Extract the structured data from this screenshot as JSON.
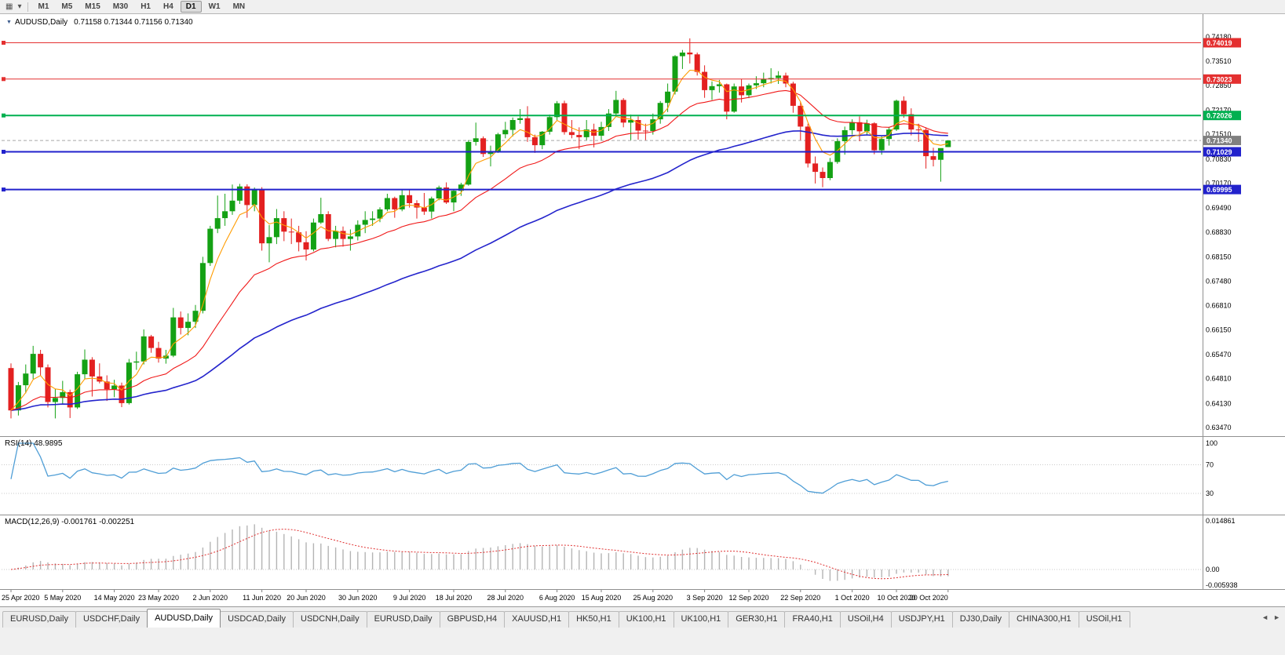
{
  "toolbar": {
    "timeframes": [
      "M1",
      "M5",
      "M15",
      "M30",
      "H1",
      "H4",
      "D1",
      "W1",
      "MN"
    ],
    "active_timeframe": "D1"
  },
  "chart": {
    "symbol_timeframe": "AUDUSD,Daily",
    "ohlc_readout": "0.71158 0.71344 0.71156 0.71340",
    "current_price": "0.71340",
    "current_price_value": 0.7134,
    "colors": {
      "bull": "#14a114",
      "bear": "#e32020",
      "ma_fast": "#ff9c00",
      "ma_mid": "#f01818",
      "ma_slow": "#2424cc",
      "rsi_line": "#4f9ed6",
      "macd_hist": "#b4b4b4",
      "macd_signal": "#e03030",
      "price_label_bg": "#808080"
    },
    "hlines": [
      {
        "price": 0.74019,
        "label": "0.74019",
        "color": "#e43030",
        "width": 1
      },
      {
        "price": 0.73023,
        "label": "0.73023",
        "color": "#e43030",
        "width": 1
      },
      {
        "price": 0.72026,
        "label": "0.72026",
        "color": "#00b050",
        "width": 2
      },
      {
        "price": 0.71029,
        "label": "0.71029",
        "color": "#2222cc",
        "width": 2
      },
      {
        "price": 0.69995,
        "label": "0.69995",
        "color": "#2222cc",
        "width": 2
      }
    ],
    "price_ticks": [
      0.7418,
      0.7351,
      0.7285,
      0.7217,
      0.7151,
      0.7083,
      0.7017,
      0.6949,
      0.6883,
      0.6815,
      0.6748,
      0.6681,
      0.6615,
      0.6547,
      0.6481,
      0.6413,
      0.6347
    ]
  },
  "chart_data": {
    "type": "candlestick",
    "title": "AUDUSD,Daily",
    "ylim": [
      0.6347,
      0.7418
    ],
    "indicators": {
      "ma_fast_period": 5,
      "ma_mid_period": 20,
      "ma_slow_period": 55,
      "rsi_period": 14,
      "macd_params": [
        12,
        26,
        9
      ]
    },
    "ohlc": [
      [
        0.651,
        0.6523,
        0.6372,
        0.6394
      ],
      [
        0.6394,
        0.6472,
        0.638,
        0.6463
      ],
      [
        0.6463,
        0.652,
        0.6441,
        0.6495
      ],
      [
        0.6495,
        0.6571,
        0.648,
        0.6549
      ],
      [
        0.6549,
        0.656,
        0.649,
        0.6512
      ],
      [
        0.6512,
        0.652,
        0.6402,
        0.6417
      ],
      [
        0.6417,
        0.6453,
        0.6372,
        0.6428
      ],
      [
        0.6428,
        0.6475,
        0.641,
        0.6444
      ],
      [
        0.6444,
        0.6451,
        0.6373,
        0.6402
      ],
      [
        0.6402,
        0.65,
        0.6398,
        0.6493
      ],
      [
        0.6493,
        0.6561,
        0.648,
        0.6533
      ],
      [
        0.6533,
        0.654,
        0.6432,
        0.6487
      ],
      [
        0.6487,
        0.6523,
        0.6468,
        0.6473
      ],
      [
        0.6473,
        0.649,
        0.642,
        0.6452
      ],
      [
        0.6452,
        0.6478,
        0.643,
        0.6462
      ],
      [
        0.6462,
        0.647,
        0.6403,
        0.6414
      ],
      [
        0.6414,
        0.6535,
        0.641,
        0.6525
      ],
      [
        0.6525,
        0.6555,
        0.6505,
        0.6528
      ],
      [
        0.6528,
        0.6616,
        0.652,
        0.6597
      ],
      [
        0.6597,
        0.6601,
        0.6552,
        0.6565
      ],
      [
        0.6565,
        0.6582,
        0.6525,
        0.6536
      ],
      [
        0.6536,
        0.656,
        0.6522,
        0.6544
      ],
      [
        0.6544,
        0.6675,
        0.654,
        0.6649
      ],
      [
        0.6649,
        0.6665,
        0.6602,
        0.662
      ],
      [
        0.662,
        0.666,
        0.66,
        0.6637
      ],
      [
        0.6637,
        0.6683,
        0.662,
        0.6667
      ],
      [
        0.6667,
        0.6815,
        0.666,
        0.6798
      ],
      [
        0.6798,
        0.69,
        0.679,
        0.6892
      ],
      [
        0.6892,
        0.6983,
        0.688,
        0.6921
      ],
      [
        0.6921,
        0.6988,
        0.69,
        0.694
      ],
      [
        0.694,
        0.7013,
        0.693,
        0.6969
      ],
      [
        0.6969,
        0.7015,
        0.696,
        0.7008
      ],
      [
        0.7008,
        0.7014,
        0.6922,
        0.6957
      ],
      [
        0.6957,
        0.7005,
        0.694,
        0.6998
      ],
      [
        0.6998,
        0.7006,
        0.6832,
        0.6852
      ],
      [
        0.6852,
        0.6902,
        0.68,
        0.6869
      ],
      [
        0.6869,
        0.6946,
        0.685,
        0.6921
      ],
      [
        0.6921,
        0.694,
        0.6858,
        0.6884
      ],
      [
        0.6884,
        0.692,
        0.685,
        0.6882
      ],
      [
        0.6882,
        0.69,
        0.683,
        0.6855
      ],
      [
        0.6855,
        0.6885,
        0.6805,
        0.6835
      ],
      [
        0.6835,
        0.692,
        0.683,
        0.6909
      ],
      [
        0.6909,
        0.6977,
        0.6905,
        0.6932
      ],
      [
        0.6932,
        0.694,
        0.6858,
        0.6864
      ],
      [
        0.6864,
        0.69,
        0.6841,
        0.6886
      ],
      [
        0.6886,
        0.6898,
        0.6843,
        0.6864
      ],
      [
        0.6864,
        0.689,
        0.6832,
        0.6871
      ],
      [
        0.6871,
        0.6915,
        0.686,
        0.6903
      ],
      [
        0.6903,
        0.694,
        0.688,
        0.6916
      ],
      [
        0.6916,
        0.694,
        0.69,
        0.692
      ],
      [
        0.692,
        0.6951,
        0.691,
        0.6945
      ],
      [
        0.6945,
        0.6988,
        0.694,
        0.6976
      ],
      [
        0.6976,
        0.698,
        0.6922,
        0.6945
      ],
      [
        0.6945,
        0.6999,
        0.694,
        0.6984
      ],
      [
        0.6984,
        0.7,
        0.695,
        0.6962
      ],
      [
        0.6962,
        0.697,
        0.692,
        0.695
      ],
      [
        0.695,
        0.699,
        0.693,
        0.6939
      ],
      [
        0.6939,
        0.698,
        0.692,
        0.6975
      ],
      [
        0.6975,
        0.701,
        0.697,
        0.7005
      ],
      [
        0.7005,
        0.7019,
        0.696,
        0.6964
      ],
      [
        0.6964,
        0.7,
        0.694,
        0.6996
      ],
      [
        0.6996,
        0.7018,
        0.6982,
        0.7013
      ],
      [
        0.7013,
        0.7135,
        0.701,
        0.713
      ],
      [
        0.713,
        0.7183,
        0.712,
        0.714
      ],
      [
        0.714,
        0.7145,
        0.7089,
        0.7097
      ],
      [
        0.7097,
        0.712,
        0.7063,
        0.7104
      ],
      [
        0.7104,
        0.7155,
        0.71,
        0.7151
      ],
      [
        0.7151,
        0.7185,
        0.714,
        0.7163
      ],
      [
        0.7163,
        0.7197,
        0.7145,
        0.719
      ],
      [
        0.719,
        0.722,
        0.718,
        0.7195
      ],
      [
        0.7195,
        0.7228,
        0.713,
        0.7143
      ],
      [
        0.7143,
        0.715,
        0.71,
        0.7121
      ],
      [
        0.7121,
        0.716,
        0.711,
        0.7158
      ],
      [
        0.7158,
        0.7205,
        0.715,
        0.7198
      ],
      [
        0.7198,
        0.7242,
        0.719,
        0.7236
      ],
      [
        0.7236,
        0.7243,
        0.715,
        0.7157
      ],
      [
        0.7157,
        0.719,
        0.714,
        0.7149
      ],
      [
        0.7149,
        0.717,
        0.711,
        0.7143
      ],
      [
        0.7143,
        0.719,
        0.7135,
        0.7164
      ],
      [
        0.7164,
        0.718,
        0.7115,
        0.7147
      ],
      [
        0.7147,
        0.7185,
        0.7135,
        0.7171
      ],
      [
        0.7171,
        0.722,
        0.716,
        0.7208
      ],
      [
        0.7208,
        0.727,
        0.72,
        0.7245
      ],
      [
        0.7245,
        0.725,
        0.717,
        0.7183
      ],
      [
        0.7183,
        0.7205,
        0.7135,
        0.719
      ],
      [
        0.719,
        0.72,
        0.7136,
        0.7161
      ],
      [
        0.7161,
        0.718,
        0.7135,
        0.716
      ],
      [
        0.716,
        0.7208,
        0.715,
        0.7192
      ],
      [
        0.7192,
        0.7242,
        0.718,
        0.7237
      ],
      [
        0.7237,
        0.729,
        0.7212,
        0.7268
      ],
      [
        0.7268,
        0.7368,
        0.726,
        0.7365
      ],
      [
        0.7365,
        0.7382,
        0.733,
        0.7375
      ],
      [
        0.7375,
        0.7414,
        0.7345,
        0.737
      ],
      [
        0.737,
        0.7375,
        0.7312,
        0.7322
      ],
      [
        0.7322,
        0.734,
        0.7251,
        0.7272
      ],
      [
        0.7272,
        0.7296,
        0.7245,
        0.7283
      ],
      [
        0.7283,
        0.73,
        0.7265,
        0.7288
      ],
      [
        0.7288,
        0.729,
        0.7192,
        0.7213
      ],
      [
        0.7213,
        0.729,
        0.721,
        0.7282
      ],
      [
        0.7282,
        0.7302,
        0.7238,
        0.7258
      ],
      [
        0.7258,
        0.729,
        0.725,
        0.7285
      ],
      [
        0.7285,
        0.731,
        0.7275,
        0.7291
      ],
      [
        0.7291,
        0.732,
        0.728,
        0.7302
      ],
      [
        0.7302,
        0.7332,
        0.729,
        0.7305
      ],
      [
        0.7305,
        0.7324,
        0.7289,
        0.7312
      ],
      [
        0.7312,
        0.732,
        0.728,
        0.729
      ],
      [
        0.729,
        0.7295,
        0.721,
        0.7229
      ],
      [
        0.7229,
        0.724,
        0.7135,
        0.7172
      ],
      [
        0.7172,
        0.718,
        0.706,
        0.7071
      ],
      [
        0.7071,
        0.709,
        0.7016,
        0.7048
      ],
      [
        0.7048,
        0.706,
        0.7006,
        0.7031
      ],
      [
        0.7031,
        0.7086,
        0.7025,
        0.7075
      ],
      [
        0.7075,
        0.714,
        0.707,
        0.7132
      ],
      [
        0.7132,
        0.7172,
        0.7095,
        0.7162
      ],
      [
        0.7162,
        0.7192,
        0.715,
        0.7184
      ],
      [
        0.7184,
        0.72,
        0.7132,
        0.7159
      ],
      [
        0.7159,
        0.7191,
        0.715,
        0.7181
      ],
      [
        0.7181,
        0.7184,
        0.7096,
        0.7107
      ],
      [
        0.7107,
        0.7145,
        0.7095,
        0.7138
      ],
      [
        0.7138,
        0.7171,
        0.712,
        0.7164
      ],
      [
        0.7164,
        0.7246,
        0.716,
        0.7243
      ],
      [
        0.7243,
        0.7255,
        0.7196,
        0.7206
      ],
      [
        0.7206,
        0.7222,
        0.7148,
        0.7164
      ],
      [
        0.7164,
        0.718,
        0.713,
        0.7163
      ],
      [
        0.7163,
        0.717,
        0.7057,
        0.7091
      ],
      [
        0.7091,
        0.7114,
        0.7063,
        0.7081
      ],
      [
        0.7081,
        0.7105,
        0.7021,
        0.7113
      ],
      [
        0.71158,
        0.71344,
        0.71156,
        0.7134
      ]
    ],
    "x_labels": [
      {
        "bar": 0,
        "text": "25 Apr 2020"
      },
      {
        "bar": 7,
        "text": "5 May 2020"
      },
      {
        "bar": 14,
        "text": "14 May 2020"
      },
      {
        "bar": 20,
        "text": "23 May 2020"
      },
      {
        "bar": 27,
        "text": "2 Jun 2020"
      },
      {
        "bar": 34,
        "text": "11 Jun 2020"
      },
      {
        "bar": 40,
        "text": "20 Jun 2020"
      },
      {
        "bar": 47,
        "text": "30 Jun 2020"
      },
      {
        "bar": 54,
        "text": "9 Jul 2020"
      },
      {
        "bar": 60,
        "text": "18 Jul 2020"
      },
      {
        "bar": 67,
        "text": "28 Jul 2020"
      },
      {
        "bar": 74,
        "text": "6 Aug 2020"
      },
      {
        "bar": 80,
        "text": "15 Aug 2020"
      },
      {
        "bar": 87,
        "text": "25 Aug 2020"
      },
      {
        "bar": 94,
        "text": "3 Sep 2020"
      },
      {
        "bar": 100,
        "text": "12 Sep 2020"
      },
      {
        "bar": 107,
        "text": "22 Sep 2020"
      },
      {
        "bar": 114,
        "text": "1 Oct 2020"
      },
      {
        "bar": 120,
        "text": "10 Oct 2020"
      },
      {
        "bar": 127,
        "text": "20 Oct 2020"
      }
    ]
  },
  "rsi_panel": {
    "label": "RSI(14) 48.9895",
    "ticks": [
      {
        "v": 100,
        "text": "100"
      },
      {
        "v": 70,
        "text": "70"
      },
      {
        "v": 30,
        "text": "30"
      }
    ],
    "dotted_levels": [
      70,
      30
    ]
  },
  "macd_panel": {
    "label": "MACD(12,26,9) -0.001761 -0.002251",
    "ticks": [
      {
        "v": 0.014861,
        "text": "0.014861"
      },
      {
        "v": 0,
        "text": "0.00"
      },
      {
        "v": -0.005938,
        "text": "-0.005938"
      }
    ]
  },
  "tabs": {
    "items": [
      "EURUSD,Daily",
      "USDCHF,Daily",
      "AUDUSD,Daily",
      "USDCAD,Daily",
      "USDCNH,Daily",
      "EURUSD,Daily",
      "GBPUSD,H4",
      "XAUUSD,H1",
      "HK50,H1",
      "UK100,H1",
      "UK100,H1",
      "GER30,H1",
      "FRA40,H1",
      "USOil,H4",
      "USDJPY,H1",
      "DJ30,Daily",
      "CHINA300,H1",
      "USOil,H1"
    ],
    "active_index": 2
  }
}
